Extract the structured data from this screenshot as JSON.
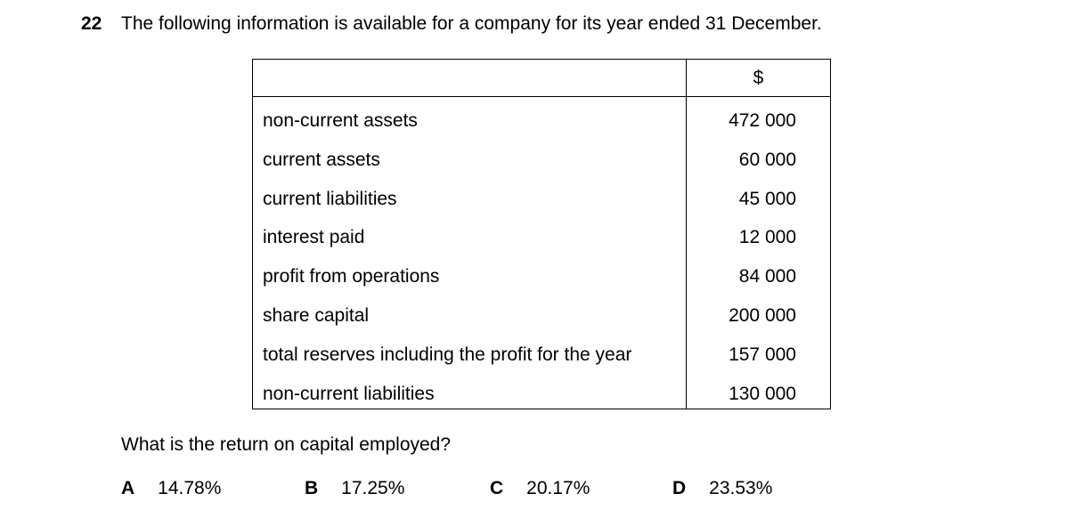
{
  "question": {
    "number": "22",
    "stem": "The following information is available for a company for its year ended 31 December.",
    "prompt": "What is the return on capital employed?"
  },
  "table": {
    "unit_header": "$",
    "rows": [
      {
        "label": "non-current assets",
        "value": "472 000"
      },
      {
        "label": "current assets",
        "value": "60 000"
      },
      {
        "label": "current liabilities",
        "value": "45 000"
      },
      {
        "label": "interest paid",
        "value": "12 000"
      },
      {
        "label": "profit from operations",
        "value": "84 000"
      },
      {
        "label": "share capital",
        "value": "200 000"
      },
      {
        "label": "total reserves including the profit for the year",
        "value": "157 000"
      },
      {
        "label": "non-current liabilities",
        "value": "130 000"
      }
    ]
  },
  "options": [
    {
      "letter": "A",
      "value": "14.78%"
    },
    {
      "letter": "B",
      "value": "17.25%"
    },
    {
      "letter": "C",
      "value": "20.17%"
    },
    {
      "letter": "D",
      "value": "23.53%"
    }
  ]
}
